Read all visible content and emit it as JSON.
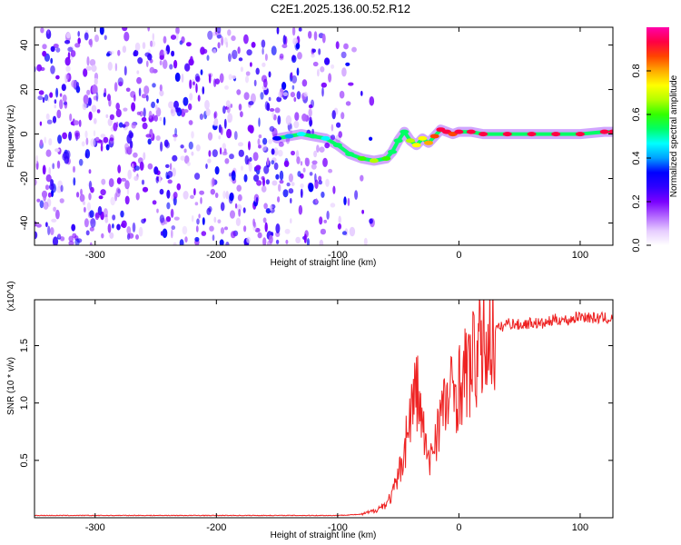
{
  "title": "C2E1.2025.136.00.52.R12",
  "chart_data": [
    {
      "type": "heatmap",
      "xlabel": "Height of straight line (km)",
      "ylabel": "Frequency (Hz)",
      "xlim": [
        -350,
        127
      ],
      "ylim": [
        -50,
        48
      ],
      "x_ticks": [
        -300,
        -200,
        -100,
        0,
        100
      ],
      "y_ticks": [
        -40,
        -20,
        0,
        20,
        40
      ],
      "colorbar": {
        "label": "Normalized spectral amplitude",
        "range": [
          0,
          1
        ],
        "ticks": [
          "0.0",
          "0.2",
          "0.4",
          "0.6",
          "0.8"
        ],
        "colors": [
          "#ffffff",
          "#e6ccff",
          "#b266ff",
          "#7a00ff",
          "#2f00ff",
          "#0000ff",
          "#00a0ff",
          "#00ffff",
          "#00ff66",
          "#33ff00",
          "#b3ff00",
          "#ffff00",
          "#ffaa00",
          "#ff4400",
          "#ff0044",
          "#ff00aa"
        ]
      },
      "ridge": {
        "x": [
          -150,
          -140,
          -130,
          -120,
          -110,
          -100,
          -90,
          -80,
          -70,
          -60,
          -55,
          -50,
          -45,
          -40,
          -35,
          -30,
          -25,
          -20,
          -15,
          -10,
          -5,
          0,
          10,
          20,
          40,
          60,
          80,
          100,
          120,
          127
        ],
        "y": [
          -2,
          -1,
          0,
          -1,
          -2,
          -5,
          -9,
          -11,
          -12,
          -11,
          -8,
          -3,
          1,
          -3,
          -5,
          -2,
          -4,
          -1,
          2,
          1,
          0,
          1,
          1,
          0,
          0,
          0,
          0,
          0,
          1,
          1
        ],
        "amplitude": [
          0.35,
          0.4,
          0.45,
          0.5,
          0.45,
          0.5,
          0.55,
          0.6,
          0.65,
          0.6,
          0.55,
          0.5,
          0.55,
          0.65,
          0.7,
          0.75,
          0.8,
          0.85,
          0.9,
          0.9,
          0.85,
          0.9,
          0.9,
          0.95,
          0.95,
          0.95,
          0.9,
          0.95,
          0.9,
          0.9
        ]
      },
      "noise_region_x": [
        -350,
        -80
      ]
    },
    {
      "type": "line",
      "xlabel": "Height of straight line (km)",
      "ylabel": "SNR (10 * v/v)",
      "y_multiplier": "(x10^4)",
      "xlim": [
        -350,
        127
      ],
      "ylim": [
        0,
        1.9
      ],
      "x_ticks": [
        -300,
        -200,
        -100,
        0,
        100
      ],
      "y_ticks": [
        0.5,
        1.0,
        1.5
      ],
      "series": [
        {
          "color": "#ee2222",
          "x": [
            -350,
            -300,
            -250,
            -200,
            -150,
            -100,
            -80,
            -70,
            -60,
            -55,
            -50,
            -45,
            -40,
            -35,
            -30,
            -25,
            -20,
            -15,
            -10,
            -5,
            0,
            5,
            10,
            15,
            20,
            25,
            30,
            35,
            40,
            50,
            60,
            70,
            80,
            90,
            100,
            110,
            120,
            127
          ],
          "values": [
            0.02,
            0.02,
            0.02,
            0.02,
            0.02,
            0.02,
            0.03,
            0.06,
            0.12,
            0.2,
            0.35,
            0.6,
            0.9,
            1.15,
            0.8,
            0.45,
            0.7,
            0.9,
            1.0,
            1.1,
            1.15,
            1.25,
            1.32,
            1.42,
            1.52,
            1.58,
            1.64,
            1.66,
            1.7,
            1.68,
            1.7,
            1.69,
            1.73,
            1.72,
            1.76,
            1.74,
            1.74,
            1.73
          ]
        }
      ]
    }
  ]
}
